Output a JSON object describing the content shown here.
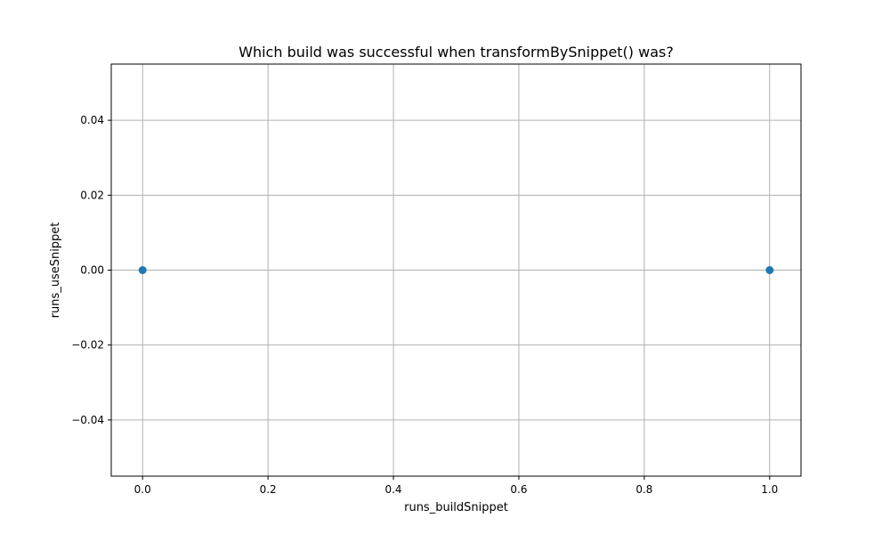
{
  "chart_data": {
    "type": "scatter",
    "title": "Which build was successful when transformBySnippet() was?",
    "xlabel": "runs_buildSnippet",
    "ylabel": "runs_useSnippet",
    "series": [
      {
        "x": [
          0,
          1
        ],
        "y": [
          0,
          0
        ],
        "color": "#1f77b4"
      }
    ],
    "xlim": [
      -0.05,
      1.05
    ],
    "ylim": [
      -0.055,
      0.055
    ],
    "xticks": [
      0.0,
      0.2,
      0.4,
      0.6,
      0.8,
      1.0
    ],
    "xtick_labels": [
      "0.0",
      "0.2",
      "0.4",
      "0.6",
      "0.8",
      "1.0"
    ],
    "yticks": [
      -0.04,
      -0.02,
      0.0,
      0.02,
      0.04
    ],
    "ytick_labels": [
      "−0.04",
      "−0.02",
      "0.00",
      "0.02",
      "0.04"
    ],
    "grid": true,
    "grid_color": "#b0b0b0",
    "axis_color": "#000000"
  }
}
